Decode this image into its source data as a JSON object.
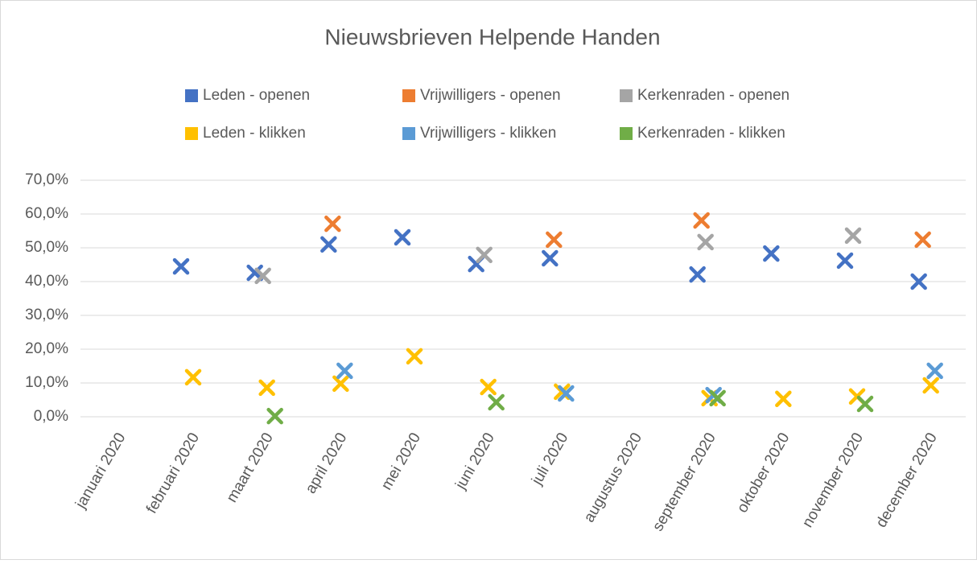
{
  "chart_data": {
    "type": "scatter-category",
    "title": "Nieuwsbrieven Helpende Handen",
    "categories": [
      "januari 2020",
      "februari 2020",
      "maart 2020",
      "april 2020",
      "mei 2020",
      "juni 2020",
      "juli 2020",
      "augustus 2020",
      "september 2020",
      "oktober 2020",
      "november 2020",
      "december 2020"
    ],
    "series": [
      {
        "name": "Leden - openen",
        "color": "#4472c4",
        "values": [
          null,
          44.5,
          42.6,
          51,
          53.1,
          45.2,
          46.9,
          null,
          42.1,
          48.3,
          46.2,
          40
        ]
      },
      {
        "name": "Vrijwilligers - openen",
        "color": "#ed7d31",
        "values": [
          null,
          null,
          null,
          57.1,
          null,
          null,
          52.4,
          null,
          58.1,
          null,
          null,
          52.4
        ]
      },
      {
        "name": "Kerkenraden - openen",
        "color": "#a5a5a5",
        "values": [
          null,
          null,
          41.7,
          null,
          null,
          47.9,
          null,
          null,
          51.7,
          null,
          53.6,
          null
        ]
      },
      {
        "name": "Leden - klikken",
        "color": "#ffc000",
        "values": [
          null,
          11.7,
          8.6,
          9.8,
          17.9,
          8.8,
          7.4,
          null,
          5.5,
          5.3,
          6,
          9.3
        ]
      },
      {
        "name": "Vrijwilligers - klikken",
        "color": "#5b9bd5",
        "values": [
          null,
          null,
          null,
          13.6,
          null,
          null,
          6.9,
          null,
          6.4,
          null,
          null,
          13.6
        ]
      },
      {
        "name": "Kerkenraden - klikken",
        "color": "#70ad47",
        "values": [
          null,
          null,
          0.2,
          null,
          null,
          4.3,
          null,
          null,
          5.5,
          null,
          3.8,
          null
        ]
      }
    ],
    "ylim": [
      0,
      70
    ],
    "yticks": [
      {
        "value": 0,
        "label": "0,0%"
      },
      {
        "value": 10,
        "label": "10,0%"
      },
      {
        "value": 20,
        "label": "20,0%"
      },
      {
        "value": 30,
        "label": "30,0%"
      },
      {
        "value": 40,
        "label": "40,0%"
      },
      {
        "value": 50,
        "label": "50,0%"
      },
      {
        "value": 60,
        "label": "60,0%"
      },
      {
        "value": 70,
        "label": "70,0%"
      }
    ],
    "grid": true,
    "legend": "top"
  }
}
